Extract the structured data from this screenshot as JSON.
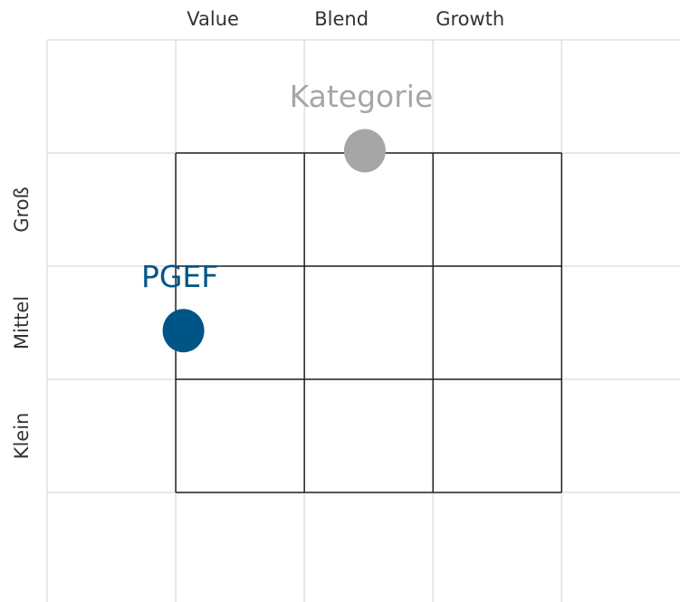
{
  "chart_data": {
    "type": "scatter",
    "x_categories": [
      "Value",
      "Blend",
      "Growth"
    ],
    "y_categories": [
      "Klein",
      "Mittel",
      "Groß"
    ],
    "xlim": [
      0,
      4.92
    ],
    "ylim": [
      0,
      5
    ],
    "xticks": [
      0,
      1,
      2,
      3,
      4
    ],
    "yticks": [
      1,
      2,
      3,
      4,
      5
    ],
    "grid": true,
    "series": [
      {
        "name": "Kategorie",
        "color": "#a6a6a6",
        "x": [
          2.47
        ],
        "values": [
          4.02
        ]
      },
      {
        "name": "PGEF",
        "color": "#005587",
        "x": [
          1.06
        ],
        "values": [
          2.43
        ]
      }
    ]
  }
}
